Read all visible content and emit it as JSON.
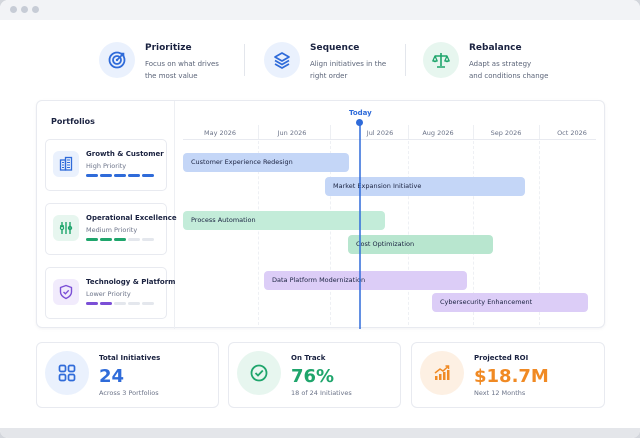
{
  "colors": {
    "accent_blue": "#2f6bd9",
    "green": "#1fa56c",
    "orange": "#f08a24",
    "purple": "#7b4fd6"
  },
  "features": [
    {
      "title": "Prioritize",
      "line1": "Focus on what drives",
      "line2": "the most value",
      "icon": "target-icon"
    },
    {
      "title": "Sequence",
      "line1": "Align initiatives in the",
      "line2": "right order",
      "icon": "layers-icon"
    },
    {
      "title": "Rebalance",
      "line1": "Adapt as strategy",
      "line2": "and conditions change",
      "icon": "scale-icon"
    }
  ],
  "sidebar": {
    "title": "Portfolios",
    "portfolios": [
      {
        "name": "Growth & Customer",
        "priority": "High Priority",
        "level": 5
      },
      {
        "name": "Operational Excellence",
        "priority": "Medium Priority",
        "level": 3
      },
      {
        "name": "Technology & Platform",
        "priority": "Lower Priority",
        "level": 2
      }
    ]
  },
  "timeline": {
    "today_label": "Today",
    "months": [
      "May 2026",
      "Jun 2026",
      "Jul 2026",
      "Aug 2026",
      "Sep 2026",
      "Oct 2026"
    ],
    "initiatives": [
      {
        "name": "Customer Experience Redesign",
        "portfolio": "Growth & Customer"
      },
      {
        "name": "Market Expansion Initiative",
        "portfolio": "Growth & Customer"
      },
      {
        "name": "Process Automation",
        "portfolio": "Operational Excellence"
      },
      {
        "name": "Cost Optimization",
        "portfolio": "Operational Excellence"
      },
      {
        "name": "Data Platform Modernization",
        "portfolio": "Technology & Platform"
      },
      {
        "name": "Cybersecurity Enhancement",
        "portfolio": "Technology & Platform"
      }
    ]
  },
  "stats": [
    {
      "label": "Total Initiatives",
      "value": "24",
      "sub": "Across 3 Portfolios",
      "icon": "grid-icon"
    },
    {
      "label": "On Track",
      "value": "76%",
      "sub": "18 of 24 Initiatives",
      "icon": "check-circle-icon"
    },
    {
      "label": "Projected ROI",
      "value": "$18.7M",
      "sub": "Next 12 Months",
      "icon": "growth-chart-icon"
    }
  ]
}
